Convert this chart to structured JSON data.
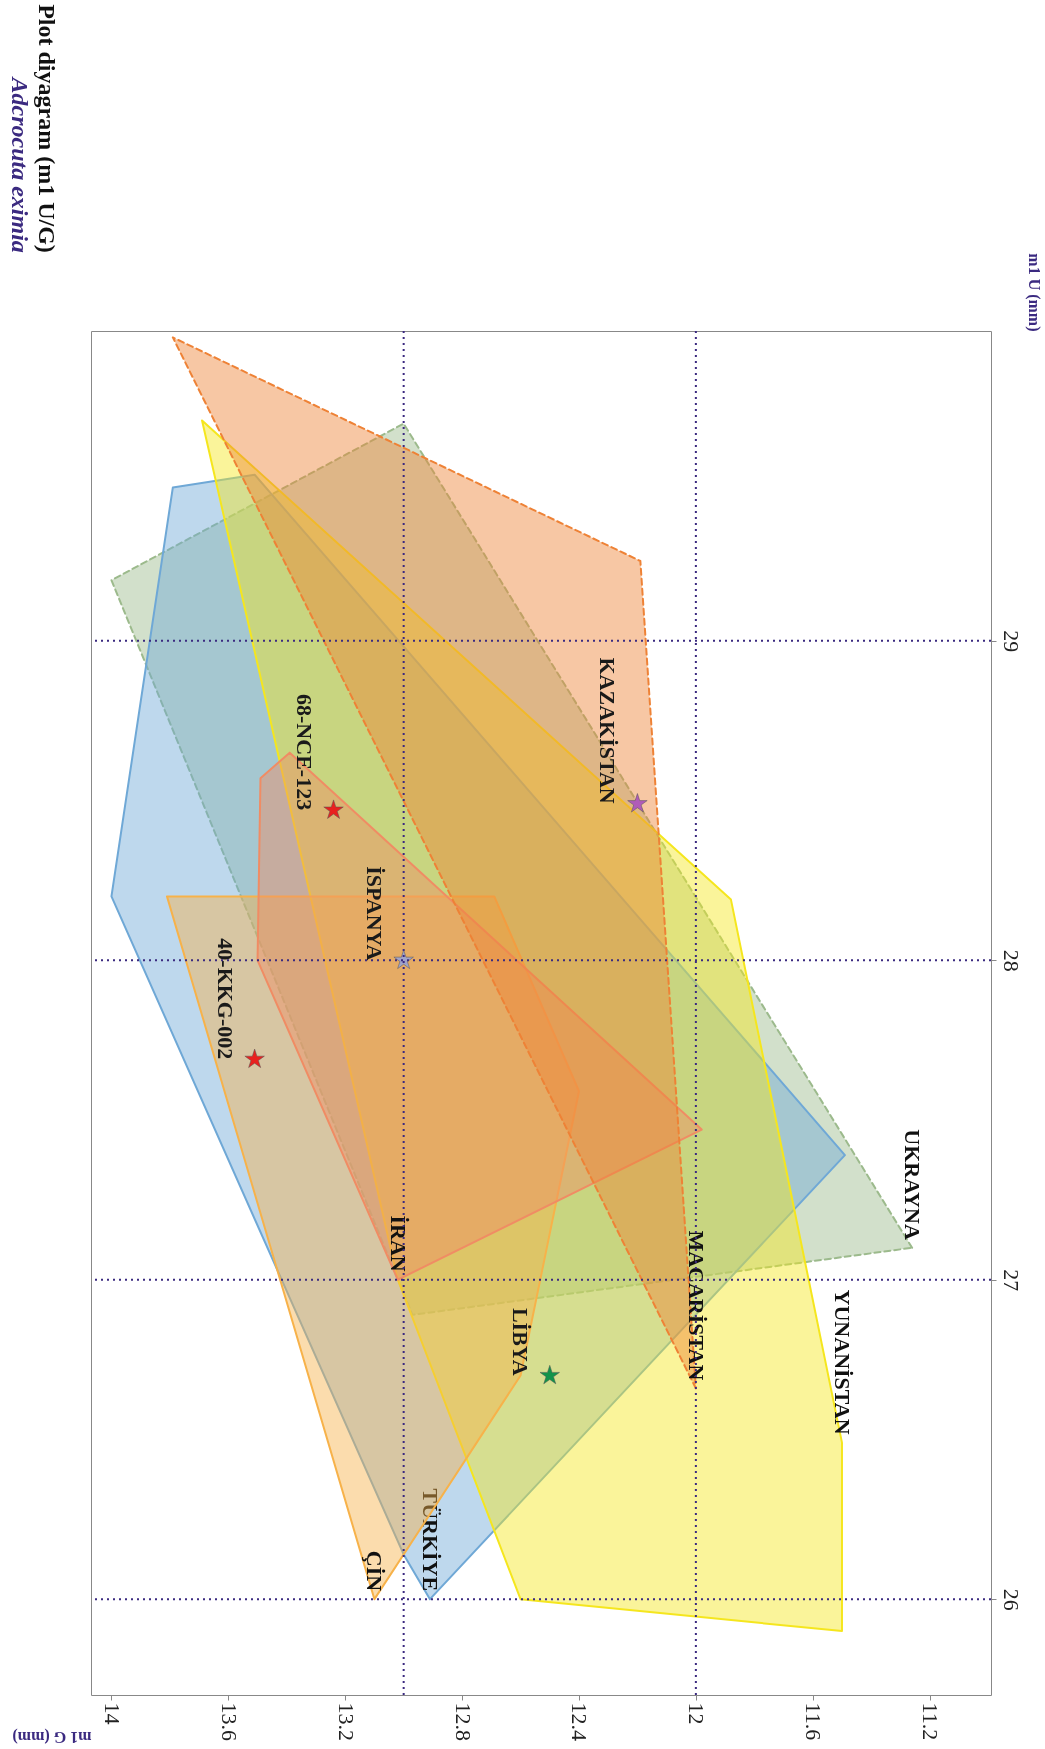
{
  "chart_data": {
    "type": "area",
    "title": "Adcrocuta eximia",
    "subtitle": "Plot diyagram (m1 U/G)",
    "xlabel": "m1 G (mm)",
    "ylabel": "m1 U (mm)",
    "xlim": [
      14.07,
      10.99
    ],
    "xticks": [
      14,
      13.6,
      13.2,
      12.8,
      12.4,
      12,
      11.6,
      11.2
    ],
    "ylim": [
      25.7,
      29.97
    ],
    "yticks": [
      26,
      27,
      28,
      29
    ],
    "grid": false,
    "series": [
      {
        "name": "UKRAYNA",
        "line_style": "dashed",
        "color": "#9cba8c",
        "x": [
          11.26,
          13.0,
          14.0,
          12.97,
          11.26
        ],
        "values": [
          27.1,
          29.68,
          29.19,
          26.89,
          27.1
        ]
      },
      {
        "name": "TÜRKİYE",
        "line_style": "solid",
        "color": "#6fa8d6",
        "x": [
          12.91,
          13.0,
          14.0,
          13.79,
          13.51,
          11.49,
          12.91
        ],
        "values": [
          26.0,
          26.14,
          28.2,
          29.48,
          29.52,
          27.39,
          26.0
        ]
      },
      {
        "name": "YUNANİSTAN",
        "line_style": "solid",
        "color": "#f5e61e",
        "x": [
          11.5,
          11.5,
          12.6,
          13.02,
          13.69,
          11.88,
          11.5
        ],
        "values": [
          26.49,
          25.9,
          26.0,
          27.0,
          29.69,
          28.19,
          26.49
        ]
      },
      {
        "name": "ÇİN",
        "line_style": "solid",
        "color": "#f7b24a",
        "x": [
          13.1,
          13.81,
          12.69,
          12.4,
          12.6,
          13.1
        ],
        "values": [
          26.0,
          28.2,
          28.2,
          27.59,
          26.7,
          26.0
        ]
      },
      {
        "name": "İRAN",
        "line_style": "solid",
        "color": "#f08c64",
        "x": [
          13.02,
          11.98,
          13.39,
          13.49,
          13.5,
          13.02
        ],
        "values": [
          27.0,
          27.47,
          28.65,
          28.57,
          28.0,
          27.0
        ]
      },
      {
        "name": "MACARİSTAN",
        "line_style": "dashed",
        "color": "#ee8236",
        "x": [
          12.0,
          13.79,
          12.19,
          12.0
        ],
        "values": [
          26.66,
          29.95,
          29.25,
          26.66
        ]
      },
      {
        "type": "scatter",
        "marker": "star",
        "name": "40-KKG-002",
        "color": "#e8211f",
        "x": [
          13.51
        ],
        "values": [
          27.69
        ]
      },
      {
        "type": "scatter",
        "marker": "star",
        "name": "68-NCE-123",
        "color": "#e8211f",
        "x": [
          13.24
        ],
        "values": [
          28.47
        ]
      },
      {
        "type": "scatter",
        "marker": "star",
        "name": "İSPANYA",
        "color": "#9fa3cc",
        "x": [
          13.0
        ],
        "values": [
          28.0
        ]
      },
      {
        "type": "scatter",
        "marker": "star",
        "name": "KAZAKİSTAN",
        "color": "#b05cb8",
        "x": [
          12.2
        ],
        "values": [
          28.49
        ]
      },
      {
        "type": "scatter",
        "marker": "star",
        "name": "LİBYA",
        "color": "#12934a",
        "x": [
          12.5
        ],
        "values": [
          26.7
        ]
      }
    ],
    "ref_lines": [
      {
        "axis": "x",
        "value": 13,
        "color": "#3b2a80",
        "line_style": "dotted"
      },
      {
        "axis": "x",
        "value": 12,
        "color": "#3b2a80",
        "line_style": "dotted"
      },
      {
        "axis": "y",
        "value": 26,
        "color": "#3b2a80",
        "line_style": "dotted"
      },
      {
        "axis": "y",
        "value": 27,
        "color": "#3b2a80",
        "line_style": "dotted"
      },
      {
        "axis": "y",
        "value": 28,
        "color": "#3b2a80",
        "line_style": "dotted"
      },
      {
        "axis": "y",
        "value": 29,
        "color": "#3b2a80",
        "line_style": "dotted"
      }
    ]
  }
}
